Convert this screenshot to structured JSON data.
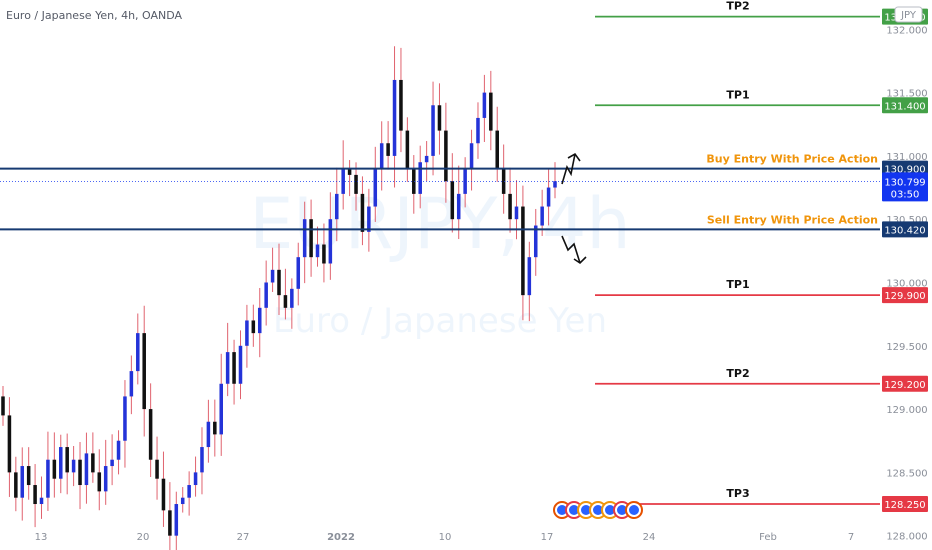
{
  "header": {
    "title": "Euro / Japanese Yen, 4h, OANDA",
    "currency": "JPY"
  },
  "watermark": {
    "symbol": "EURJPY, 4h",
    "name": "Euro / Japanese Yen"
  },
  "chart_data": {
    "type": "candlestick",
    "ylim": [
      127.95,
      132.2
    ],
    "y_ticks": [
      "128.000",
      "128.500",
      "129.000",
      "129.500",
      "130.000",
      "130.500",
      "131.000",
      "131.500",
      "132.000"
    ],
    "x_ticks": [
      "13",
      "20",
      "27",
      "2022",
      "10",
      "17",
      "24",
      "Feb",
      "7"
    ],
    "colors": {
      "up": "#2433d8",
      "down": "#111111",
      "green": "#43a047",
      "red": "#e53945",
      "navy": "#163a72",
      "orange": "#f0950c",
      "current": "#1235f0"
    },
    "current_price": {
      "value": "130.799",
      "countdown": "03:50"
    },
    "levels": [
      {
        "text": "TP2",
        "price": 132.1,
        "tag": "132.100",
        "color": "green",
        "kind": "tp"
      },
      {
        "text": "TP1",
        "price": 131.4,
        "tag": "131.400",
        "color": "green",
        "kind": "tp"
      },
      {
        "text": "Buy Entry With Price Action",
        "price": 130.9,
        "tag": "130.900",
        "color": "navy",
        "kind": "entry"
      },
      {
        "text": "Sell Entry With Price Action",
        "price": 130.42,
        "tag": "130.420",
        "color": "navy",
        "kind": "entry"
      },
      {
        "text": "TP1",
        "price": 129.9,
        "tag": "129.900",
        "color": "red",
        "kind": "tp"
      },
      {
        "text": "TP2",
        "price": 129.2,
        "tag": "129.200",
        "color": "red",
        "kind": "tp"
      },
      {
        "text": "TP3",
        "price": 128.25,
        "tag": "128.250",
        "color": "red",
        "kind": "tp"
      }
    ],
    "closes": [
      128.95,
      128.5,
      128.3,
      128.55,
      128.4,
      128.25,
      128.3,
      128.6,
      128.45,
      128.7,
      128.5,
      128.6,
      128.4,
      128.65,
      128.5,
      128.35,
      128.55,
      128.6,
      128.75,
      129.1,
      129.3,
      129.6,
      129.0,
      128.6,
      128.45,
      128.2,
      128.0,
      128.25,
      128.3,
      128.4,
      128.5,
      128.7,
      128.9,
      128.8,
      129.2,
      129.45,
      129.2,
      129.5,
      129.7,
      129.6,
      129.8,
      130.0,
      130.1,
      129.9,
      129.8,
      129.95,
      130.2,
      130.5,
      130.2,
      130.3,
      130.15,
      130.5,
      130.7,
      130.9,
      130.85,
      130.7,
      130.4,
      130.6,
      130.9,
      131.1,
      131.0,
      131.6,
      131.2,
      130.9,
      130.7,
      130.95,
      131.0,
      131.4,
      131.2,
      130.8,
      130.5,
      130.7,
      130.9,
      131.1,
      131.3,
      131.5,
      131.2,
      130.9,
      130.7,
      130.5,
      130.6,
      129.9,
      130.2,
      130.45,
      130.6,
      130.75,
      130.8
    ],
    "pattern_icons": 7
  }
}
